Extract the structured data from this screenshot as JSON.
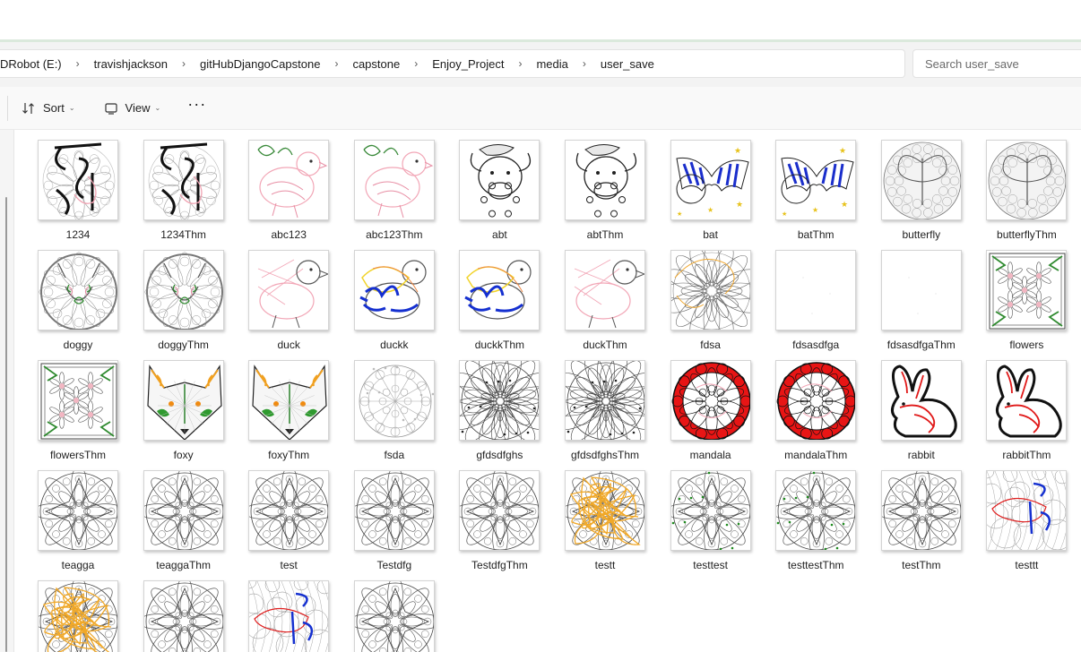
{
  "address": {
    "crumbs": [
      "DRobot (E:)",
      "travishjackson",
      "gitHubDjangoCapstone",
      "capstone",
      "Enjoy_Project",
      "media",
      "user_save"
    ],
    "separator": "›"
  },
  "search": {
    "placeholder": "Search user_save"
  },
  "toolbar": {
    "sort_label": "Sort",
    "view_label": "View",
    "more_label": "···",
    "caret": "⌄"
  },
  "files": [
    {
      "name": "1234",
      "icon": "doodle-lotus"
    },
    {
      "name": "1234Thm",
      "icon": "doodle-lotus"
    },
    {
      "name": "abc123",
      "icon": "chick-pink"
    },
    {
      "name": "abc123Thm",
      "icon": "chick-pink"
    },
    {
      "name": "abt",
      "icon": "cow-outline"
    },
    {
      "name": "abtThm",
      "icon": "cow-outline"
    },
    {
      "name": "bat",
      "icon": "bat-blue"
    },
    {
      "name": "batThm",
      "icon": "bat-blue"
    },
    {
      "name": "butterfly",
      "icon": "butterfly-mandala"
    },
    {
      "name": "butterflyThm",
      "icon": "butterfly-mandala"
    },
    {
      "name": "doggy",
      "icon": "dog-mandala"
    },
    {
      "name": "doggyThm",
      "icon": "dog-mandala"
    },
    {
      "name": "duck",
      "icon": "duck-pink"
    },
    {
      "name": "duckk",
      "icon": "duck-blue"
    },
    {
      "name": "duckkThm",
      "icon": "duck-blue"
    },
    {
      "name": "duckThm",
      "icon": "duck-pink"
    },
    {
      "name": "fdsa",
      "icon": "mandala-orange"
    },
    {
      "name": "fdsasdfga",
      "icon": "blank"
    },
    {
      "name": "fdsasdfgaThm",
      "icon": "blank"
    },
    {
      "name": "flowers",
      "icon": "flowers-frame"
    },
    {
      "name": "flowersThm",
      "icon": "flowers-frame"
    },
    {
      "name": "foxy",
      "icon": "fox-face"
    },
    {
      "name": "foxyThm",
      "icon": "fox-face"
    },
    {
      "name": "fsda",
      "icon": "wheel-light"
    },
    {
      "name": "gfdsdfghs",
      "icon": "mandala-grey"
    },
    {
      "name": "gfdsdfghsThm",
      "icon": "mandala-grey"
    },
    {
      "name": "mandala",
      "icon": "mandala-red"
    },
    {
      "name": "mandalaThm",
      "icon": "mandala-red"
    },
    {
      "name": "rabbit",
      "icon": "rabbit-red"
    },
    {
      "name": "rabbitThm",
      "icon": "rabbit-red"
    },
    {
      "name": "teagga",
      "icon": "mandala-star"
    },
    {
      "name": "teaggaThm",
      "icon": "mandala-star"
    },
    {
      "name": "test",
      "icon": "mandala-star"
    },
    {
      "name": "Testdfg",
      "icon": "mandala-star"
    },
    {
      "name": "TestdfgThm",
      "icon": "mandala-star"
    },
    {
      "name": "testt",
      "icon": "mandala-star-orange"
    },
    {
      "name": "testtest",
      "icon": "mandala-star-green"
    },
    {
      "name": "testtestThm",
      "icon": "mandala-star-green"
    },
    {
      "name": "testThm",
      "icon": "mandala-star"
    },
    {
      "name": "testtt",
      "icon": "zentangle-blue"
    },
    {
      "name": "",
      "icon": "mandala-star-orange"
    },
    {
      "name": "",
      "icon": "mandala-star"
    },
    {
      "name": "",
      "icon": "zentangle-blue"
    },
    {
      "name": "",
      "icon": "mandala-star"
    }
  ]
}
